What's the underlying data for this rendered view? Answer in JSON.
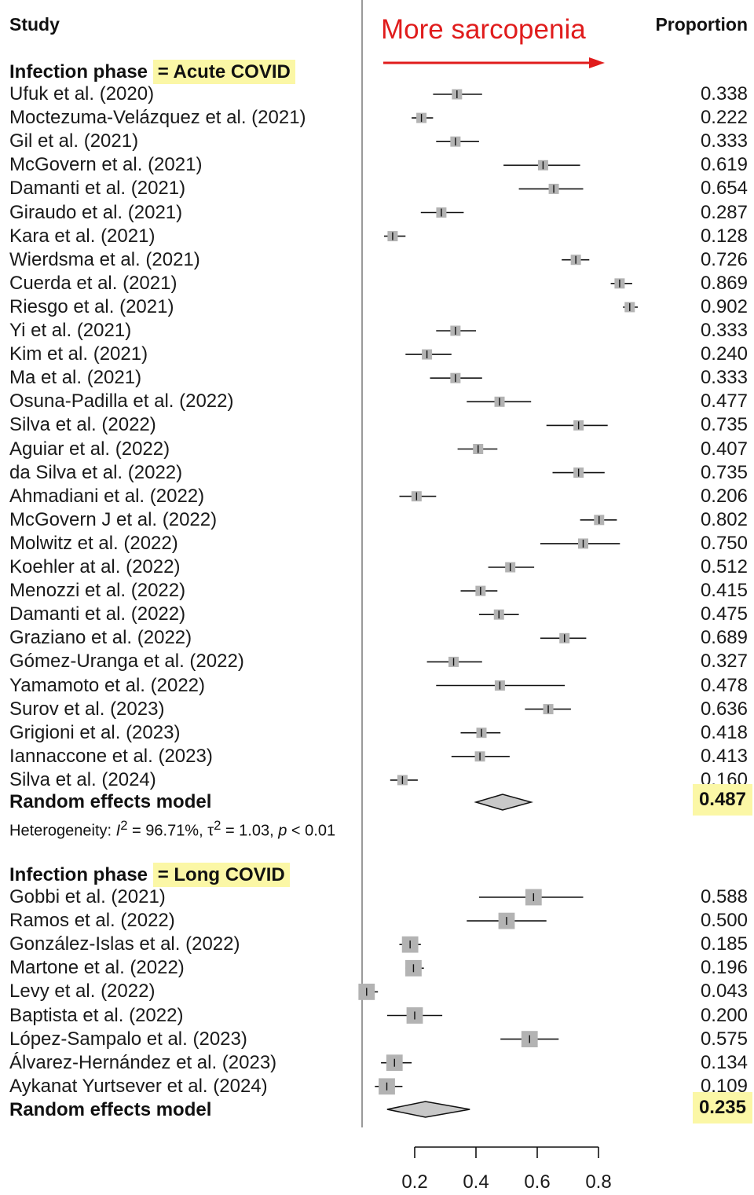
{
  "header": {
    "study_label": "Study",
    "proportion_label": "Proportion",
    "direction_label": "More sarcopenia"
  },
  "colors": {
    "highlight": "#fbf7a6",
    "arrow": "#e01c1c",
    "box": "#b3b3b3",
    "diamond": "#c8c8c8"
  },
  "chart_data": {
    "type": "forest",
    "xlim": [
      0.2,
      0.8
    ],
    "x_ticks": [
      "0.2",
      "0.4",
      "0.6",
      "0.8"
    ],
    "groups": [
      {
        "prefix": "Infection phase",
        "phase": "= Acute COVID",
        "pooled_label": "Random effects model",
        "pooled_value": "0.487",
        "pooled": 0.487,
        "pooled_ci": [
          0.4,
          0.58
        ],
        "heterogeneity": {
          "prefix": "Heterogeneity: ",
          "i2_symbol": "I",
          "i2_sup": "2",
          "i2_value": " = 96.71%, ",
          "tau2_symbol": "τ",
          "tau2_sup": "2",
          "tau2_value": " = 1.03, ",
          "p_symbol": "p",
          "p_value": " < 0.01"
        },
        "studies": [
          {
            "label": "Ufuk et al. (2020)",
            "value": "0.338",
            "est": 0.338,
            "ci": [
              0.26,
              0.42
            ],
            "w": 1
          },
          {
            "label": "Moctezuma-Velázquez  et al. (2021)",
            "value": "0.222",
            "est": 0.222,
            "ci": [
              0.19,
              0.26
            ],
            "w": 1
          },
          {
            "label": "Gil et al. (2021)",
            "value": "0.333",
            "est": 0.333,
            "ci": [
              0.27,
              0.41
            ],
            "w": 1
          },
          {
            "label": "McGovern et al. (2021)",
            "value": "0.619",
            "est": 0.619,
            "ci": [
              0.49,
              0.74
            ],
            "w": 1
          },
          {
            "label": "Damanti et al. (2021)",
            "value": "0.654",
            "est": 0.654,
            "ci": [
              0.54,
              0.75
            ],
            "w": 1
          },
          {
            "label": "Giraudo et al. (2021)",
            "value": "0.287",
            "est": 0.287,
            "ci": [
              0.22,
              0.36
            ],
            "w": 1
          },
          {
            "label": "Kara et al. (2021)",
            "value": "0.128",
            "est": 0.128,
            "ci": [
              0.1,
              0.17
            ],
            "w": 1
          },
          {
            "label": "Wierdsma et al. (2021)",
            "value": "0.726",
            "est": 0.726,
            "ci": [
              0.68,
              0.77
            ],
            "w": 1
          },
          {
            "label": "Cuerda et al. (2021)",
            "value": "0.869",
            "est": 0.869,
            "ci": [
              0.84,
              0.91
            ],
            "w": 1
          },
          {
            "label": "Riesgo et al. (2021)",
            "value": "0.902",
            "est": 0.902,
            "ci": [
              0.88,
              0.93
            ],
            "w": 1
          },
          {
            "label": "Yi et al. (2021)",
            "value": "0.333",
            "est": 0.333,
            "ci": [
              0.27,
              0.4
            ],
            "w": 1
          },
          {
            "label": "Kim et al. (2021)",
            "value": "0.240",
            "est": 0.24,
            "ci": [
              0.17,
              0.32
            ],
            "w": 1
          },
          {
            "label": "Ma et al. (2021)",
            "value": "0.333",
            "est": 0.333,
            "ci": [
              0.25,
              0.42
            ],
            "w": 1
          },
          {
            "label": "Osuna-Padilla et al. (2022)",
            "value": "0.477",
            "est": 0.477,
            "ci": [
              0.37,
              0.58
            ],
            "w": 1
          },
          {
            "label": "Silva et al. (2022)",
            "value": "0.735",
            "est": 0.735,
            "ci": [
              0.63,
              0.83
            ],
            "w": 1
          },
          {
            "label": "Aguiar et al. (2022)",
            "value": "0.407",
            "est": 0.407,
            "ci": [
              0.34,
              0.47
            ],
            "w": 1
          },
          {
            "label": "da Silva et al. (2022)",
            "value": "0.735",
            "est": 0.735,
            "ci": [
              0.65,
              0.82
            ],
            "w": 1
          },
          {
            "label": "Ahmadiani et al. (2022)",
            "value": "0.206",
            "est": 0.206,
            "ci": [
              0.15,
              0.27
            ],
            "w": 1
          },
          {
            "label": "McGovern J et al. (2022)",
            "value": "0.802",
            "est": 0.802,
            "ci": [
              0.74,
              0.86
            ],
            "w": 1
          },
          {
            "label": "Molwitz et al. (2022)",
            "value": "0.750",
            "est": 0.75,
            "ci": [
              0.61,
              0.87
            ],
            "w": 1
          },
          {
            "label": "Koehler at al. (2022)",
            "value": "0.512",
            "est": 0.512,
            "ci": [
              0.44,
              0.59
            ],
            "w": 1
          },
          {
            "label": "Menozzi et al. (2022)",
            "value": "0.415",
            "est": 0.415,
            "ci": [
              0.35,
              0.47
            ],
            "w": 1
          },
          {
            "label": "Damanti et al. (2022)",
            "value": "0.475",
            "est": 0.475,
            "ci": [
              0.41,
              0.54
            ],
            "w": 1
          },
          {
            "label": "Graziano et al. (2022)",
            "value": "0.689",
            "est": 0.689,
            "ci": [
              0.61,
              0.76
            ],
            "w": 1
          },
          {
            "label": "Gómez-Uranga et al. (2022)",
            "value": "0.327",
            "est": 0.327,
            "ci": [
              0.24,
              0.42
            ],
            "w": 1
          },
          {
            "label": "Yamamoto et al. (2022)",
            "value": "0.478",
            "est": 0.478,
            "ci": [
              0.27,
              0.69
            ],
            "w": 1
          },
          {
            "label": "Surov et al. (2023)",
            "value": "0.636",
            "est": 0.636,
            "ci": [
              0.56,
              0.71
            ],
            "w": 1
          },
          {
            "label": "Grigioni et al. (2023)",
            "value": "0.418",
            "est": 0.418,
            "ci": [
              0.35,
              0.48
            ],
            "w": 1
          },
          {
            "label": "Iannaccone et al. (2023)",
            "value": "0.413",
            "est": 0.413,
            "ci": [
              0.32,
              0.51
            ],
            "w": 1
          },
          {
            "label": "Silva et al. (2024)",
            "value": "0.160",
            "est": 0.16,
            "ci": [
              0.12,
              0.21
            ],
            "w": 1
          }
        ]
      },
      {
        "prefix": "Infection phase",
        "phase": "= Long COVID",
        "pooled_label": "Random effects model",
        "pooled_value": "0.235",
        "pooled": 0.235,
        "pooled_ci": [
          0.11,
          0.38
        ],
        "studies": [
          {
            "label": "Gobbi et al. (2021)",
            "value": "0.588",
            "est": 0.588,
            "ci": [
              0.41,
              0.75
            ],
            "w": 1.6
          },
          {
            "label": "Ramos et al. (2022)",
            "value": "0.500",
            "est": 0.5,
            "ci": [
              0.37,
              0.63
            ],
            "w": 1.6
          },
          {
            "label": "González-Islas et al. (2022)",
            "value": "0.185",
            "est": 0.185,
            "ci": [
              0.15,
              0.22
            ],
            "w": 1.6
          },
          {
            "label": "Martone et al. (2022)",
            "value": "0.196",
            "est": 0.196,
            "ci": [
              0.17,
              0.23
            ],
            "w": 1.6
          },
          {
            "label": "Levy et al. (2022)",
            "value": "0.043",
            "est": 0.043,
            "ci": [
              0.02,
              0.08
            ],
            "w": 1.6
          },
          {
            "label": "Baptista et al. (2022)",
            "value": "0.200",
            "est": 0.2,
            "ci": [
              0.11,
              0.29
            ],
            "w": 1.6
          },
          {
            "label": "López-Sampalo et al. (2023)",
            "value": "0.575",
            "est": 0.575,
            "ci": [
              0.48,
              0.67
            ],
            "w": 1.6
          },
          {
            "label": "Álvarez-Hernández et al. (2023)",
            "value": "0.134",
            "est": 0.134,
            "ci": [
              0.09,
              0.19
            ],
            "w": 1.6
          },
          {
            "label": "Aykanat Yurtsever et al. (2024)",
            "value": "0.109",
            "est": 0.109,
            "ci": [
              0.07,
              0.16
            ],
            "w": 1.6
          }
        ]
      }
    ]
  }
}
